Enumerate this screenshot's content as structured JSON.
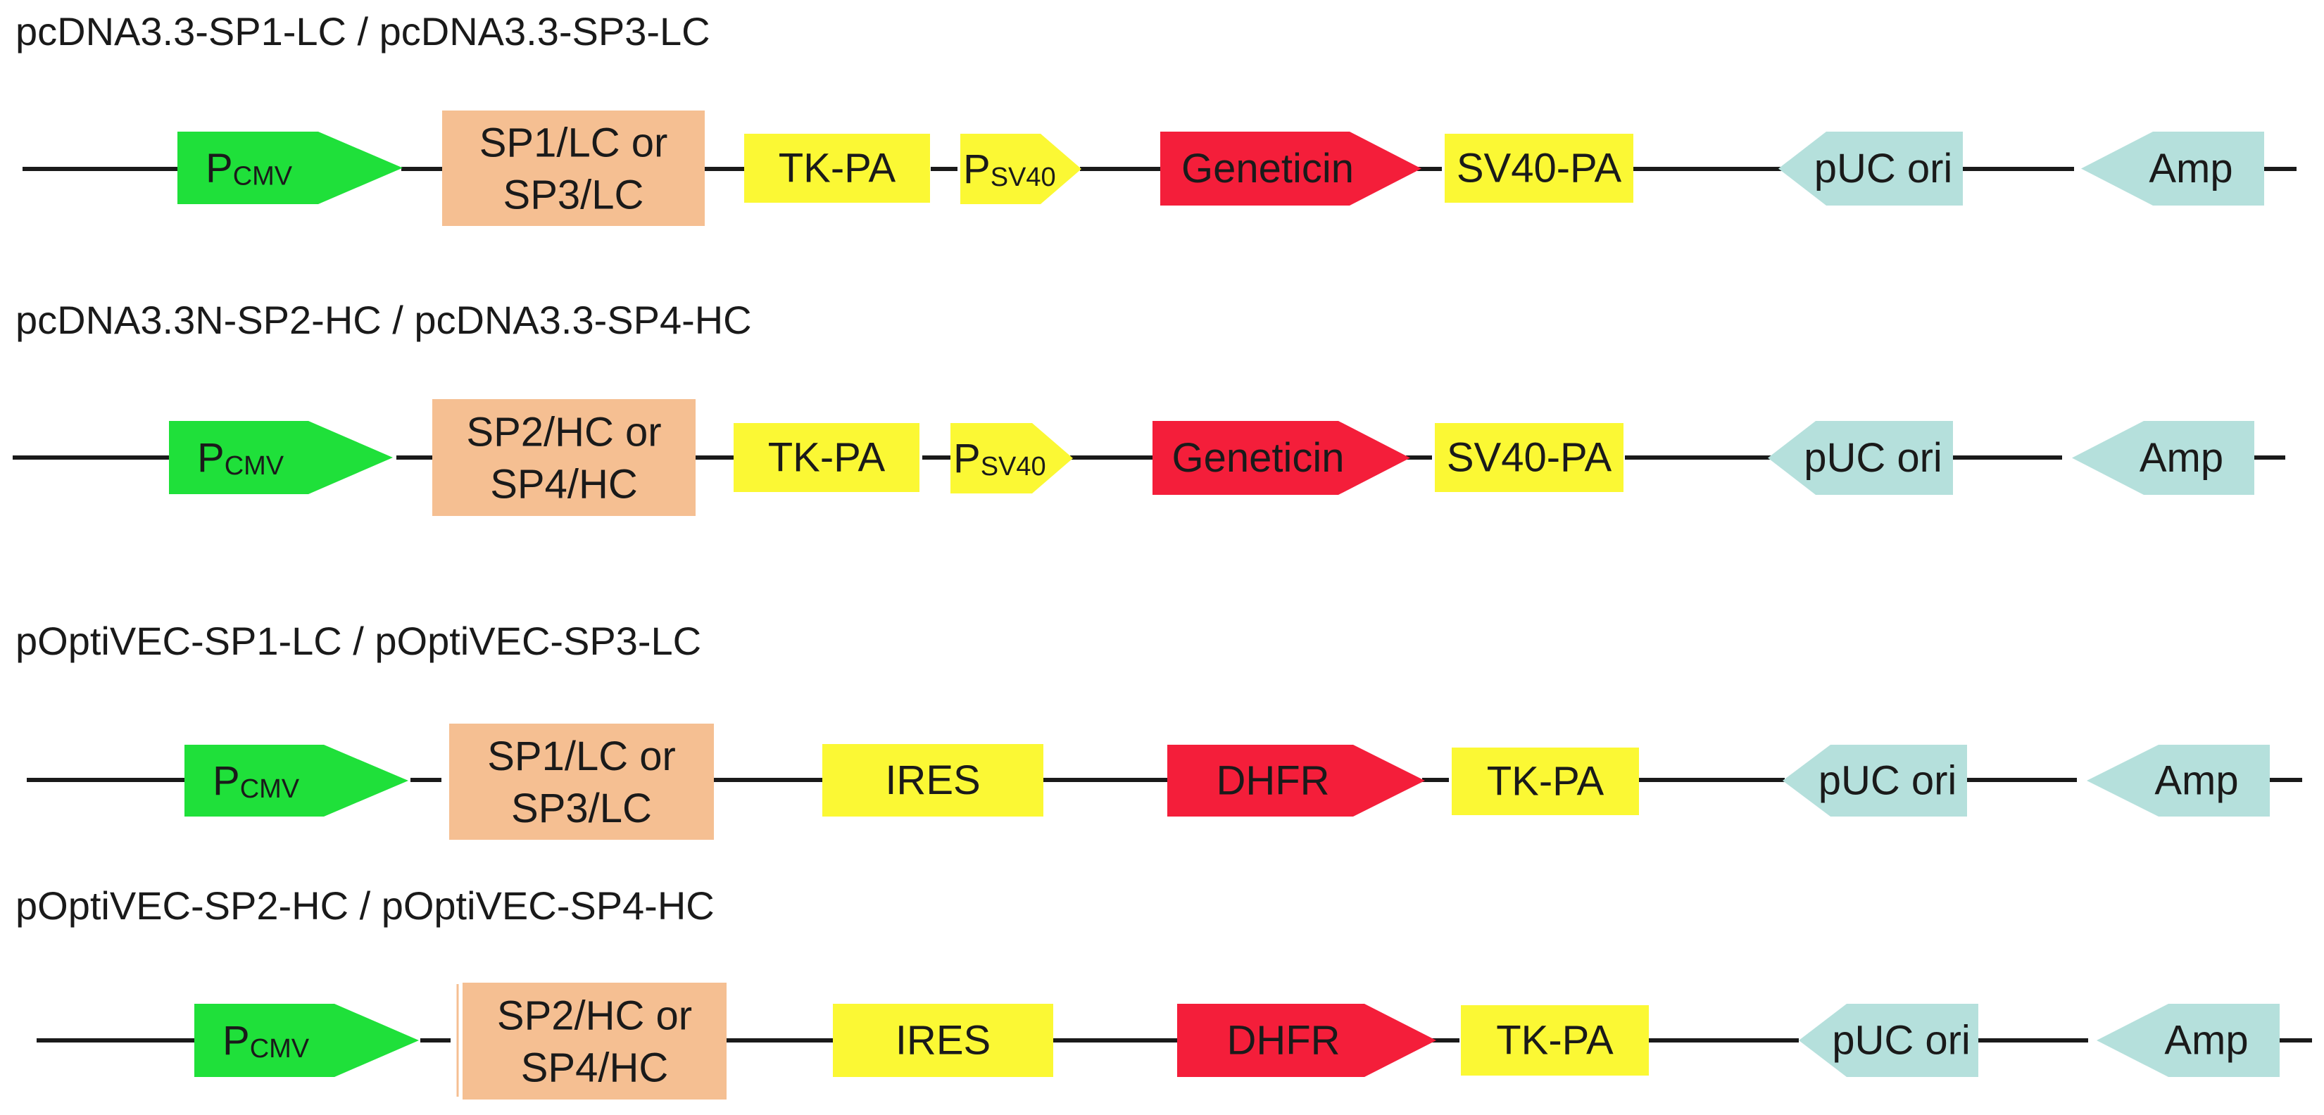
{
  "colors": {
    "promoter": "#1fe03a",
    "insert": "#f5bf92",
    "regulatory": "#fbf834",
    "marker": "#f41e3a",
    "origin": "#b5e0dc",
    "line": "#1a1a1a"
  },
  "constructs": [
    {
      "title": "pcDNA3.3-SP1-LC / pcDNA3.3-SP3-LC",
      "elements": [
        {
          "type": "promoter",
          "main": "P",
          "sub": "CMV"
        },
        {
          "type": "insert",
          "line1": "SP1/LC or",
          "line2": "SP3/LC"
        },
        {
          "type": "regulatory",
          "text": "TK-PA"
        },
        {
          "type": "promoter-small",
          "main": "P",
          "sub": "SV40"
        },
        {
          "type": "marker",
          "text": "Geneticin"
        },
        {
          "type": "regulatory",
          "text": "SV40-PA"
        },
        {
          "type": "origin",
          "text": "pUC ori"
        },
        {
          "type": "resistance",
          "text": "Amp"
        }
      ]
    },
    {
      "title": "pcDNA3.3N-SP2-HC / pcDNA3.3-SP4-HC",
      "elements": [
        {
          "type": "promoter",
          "main": "P",
          "sub": "CMV"
        },
        {
          "type": "insert",
          "line1": "SP2/HC or",
          "line2": "SP4/HC"
        },
        {
          "type": "regulatory",
          "text": "TK-PA"
        },
        {
          "type": "promoter-small",
          "main": "P",
          "sub": "SV40"
        },
        {
          "type": "marker",
          "text": "Geneticin"
        },
        {
          "type": "regulatory",
          "text": "SV40-PA"
        },
        {
          "type": "origin",
          "text": "pUC ori"
        },
        {
          "type": "resistance",
          "text": "Amp"
        }
      ]
    },
    {
      "title": "pOptiVEC-SP1-LC / pOptiVEC-SP3-LC",
      "elements": [
        {
          "type": "promoter",
          "main": "P",
          "sub": "CMV"
        },
        {
          "type": "insert",
          "line1": "SP1/LC or",
          "line2": "SP3/LC"
        },
        {
          "type": "regulatory",
          "text": "IRES"
        },
        {
          "type": "marker",
          "text": "DHFR"
        },
        {
          "type": "regulatory",
          "text": "TK-PA"
        },
        {
          "type": "origin",
          "text": "pUC ori"
        },
        {
          "type": "resistance",
          "text": "Amp"
        }
      ]
    },
    {
      "title": "pOptiVEC-SP2-HC / pOptiVEC-SP4-HC",
      "elements": [
        {
          "type": "promoter",
          "main": "P",
          "sub": "CMV"
        },
        {
          "type": "insert",
          "line1": "SP2/HC or",
          "line2": "SP4/HC"
        },
        {
          "type": "regulatory",
          "text": "IRES"
        },
        {
          "type": "marker",
          "text": "DHFR"
        },
        {
          "type": "regulatory",
          "text": "TK-PA"
        },
        {
          "type": "origin",
          "text": "pUC ori"
        },
        {
          "type": "resistance",
          "text": "Amp"
        }
      ]
    }
  ]
}
